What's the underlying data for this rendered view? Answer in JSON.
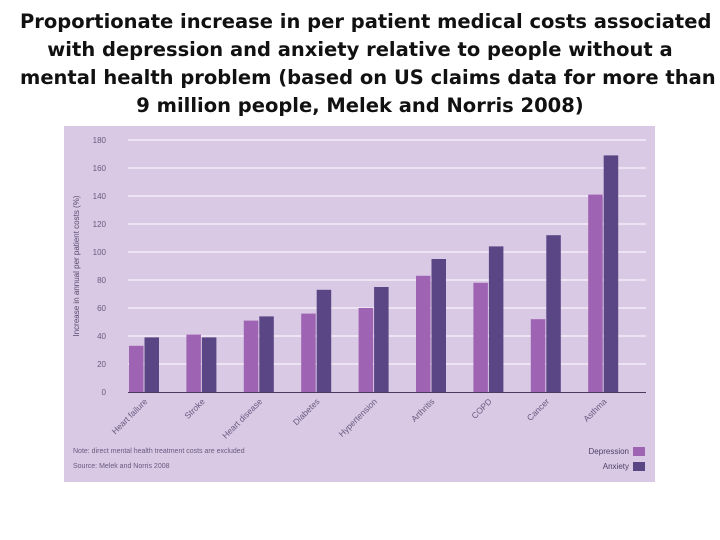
{
  "title_lines": [
    "Proportionate increase in per patient medical costs associated",
    "with depression and anxiety relative to people without a",
    "mental health problem (based on US claims data for more than",
    "9 million people, Melek and Norris 2008)"
  ],
  "notes": {
    "note": "Note: direct mental health treatment costs are excluded",
    "source": "Source: Melek and Norris 2008"
  },
  "colors": {
    "depression": "#9e63b2",
    "anxiety": "#5a4585",
    "panel": "#d9c9e4"
  },
  "chart_data": {
    "type": "bar",
    "categories": [
      "Heart failure",
      "Stroke",
      "Heart disease",
      "Diabetes",
      "Hypertension",
      "Arthritis",
      "COPD",
      "Cancer",
      "Asthma"
    ],
    "series": [
      {
        "name": "Depression",
        "values": [
          33,
          41,
          51,
          56,
          60,
          83,
          78,
          52,
          141
        ]
      },
      {
        "name": "Anxiety",
        "values": [
          39,
          39,
          54,
          73,
          75,
          95,
          104,
          112,
          169
        ]
      }
    ],
    "ylabel": "Increase in annual per patient costs (%)",
    "ylim": [
      0,
      180
    ],
    "yticks": [
      0,
      20,
      40,
      60,
      80,
      100,
      120,
      140,
      160,
      180
    ],
    "grid": true,
    "legend": "bottom-right"
  }
}
